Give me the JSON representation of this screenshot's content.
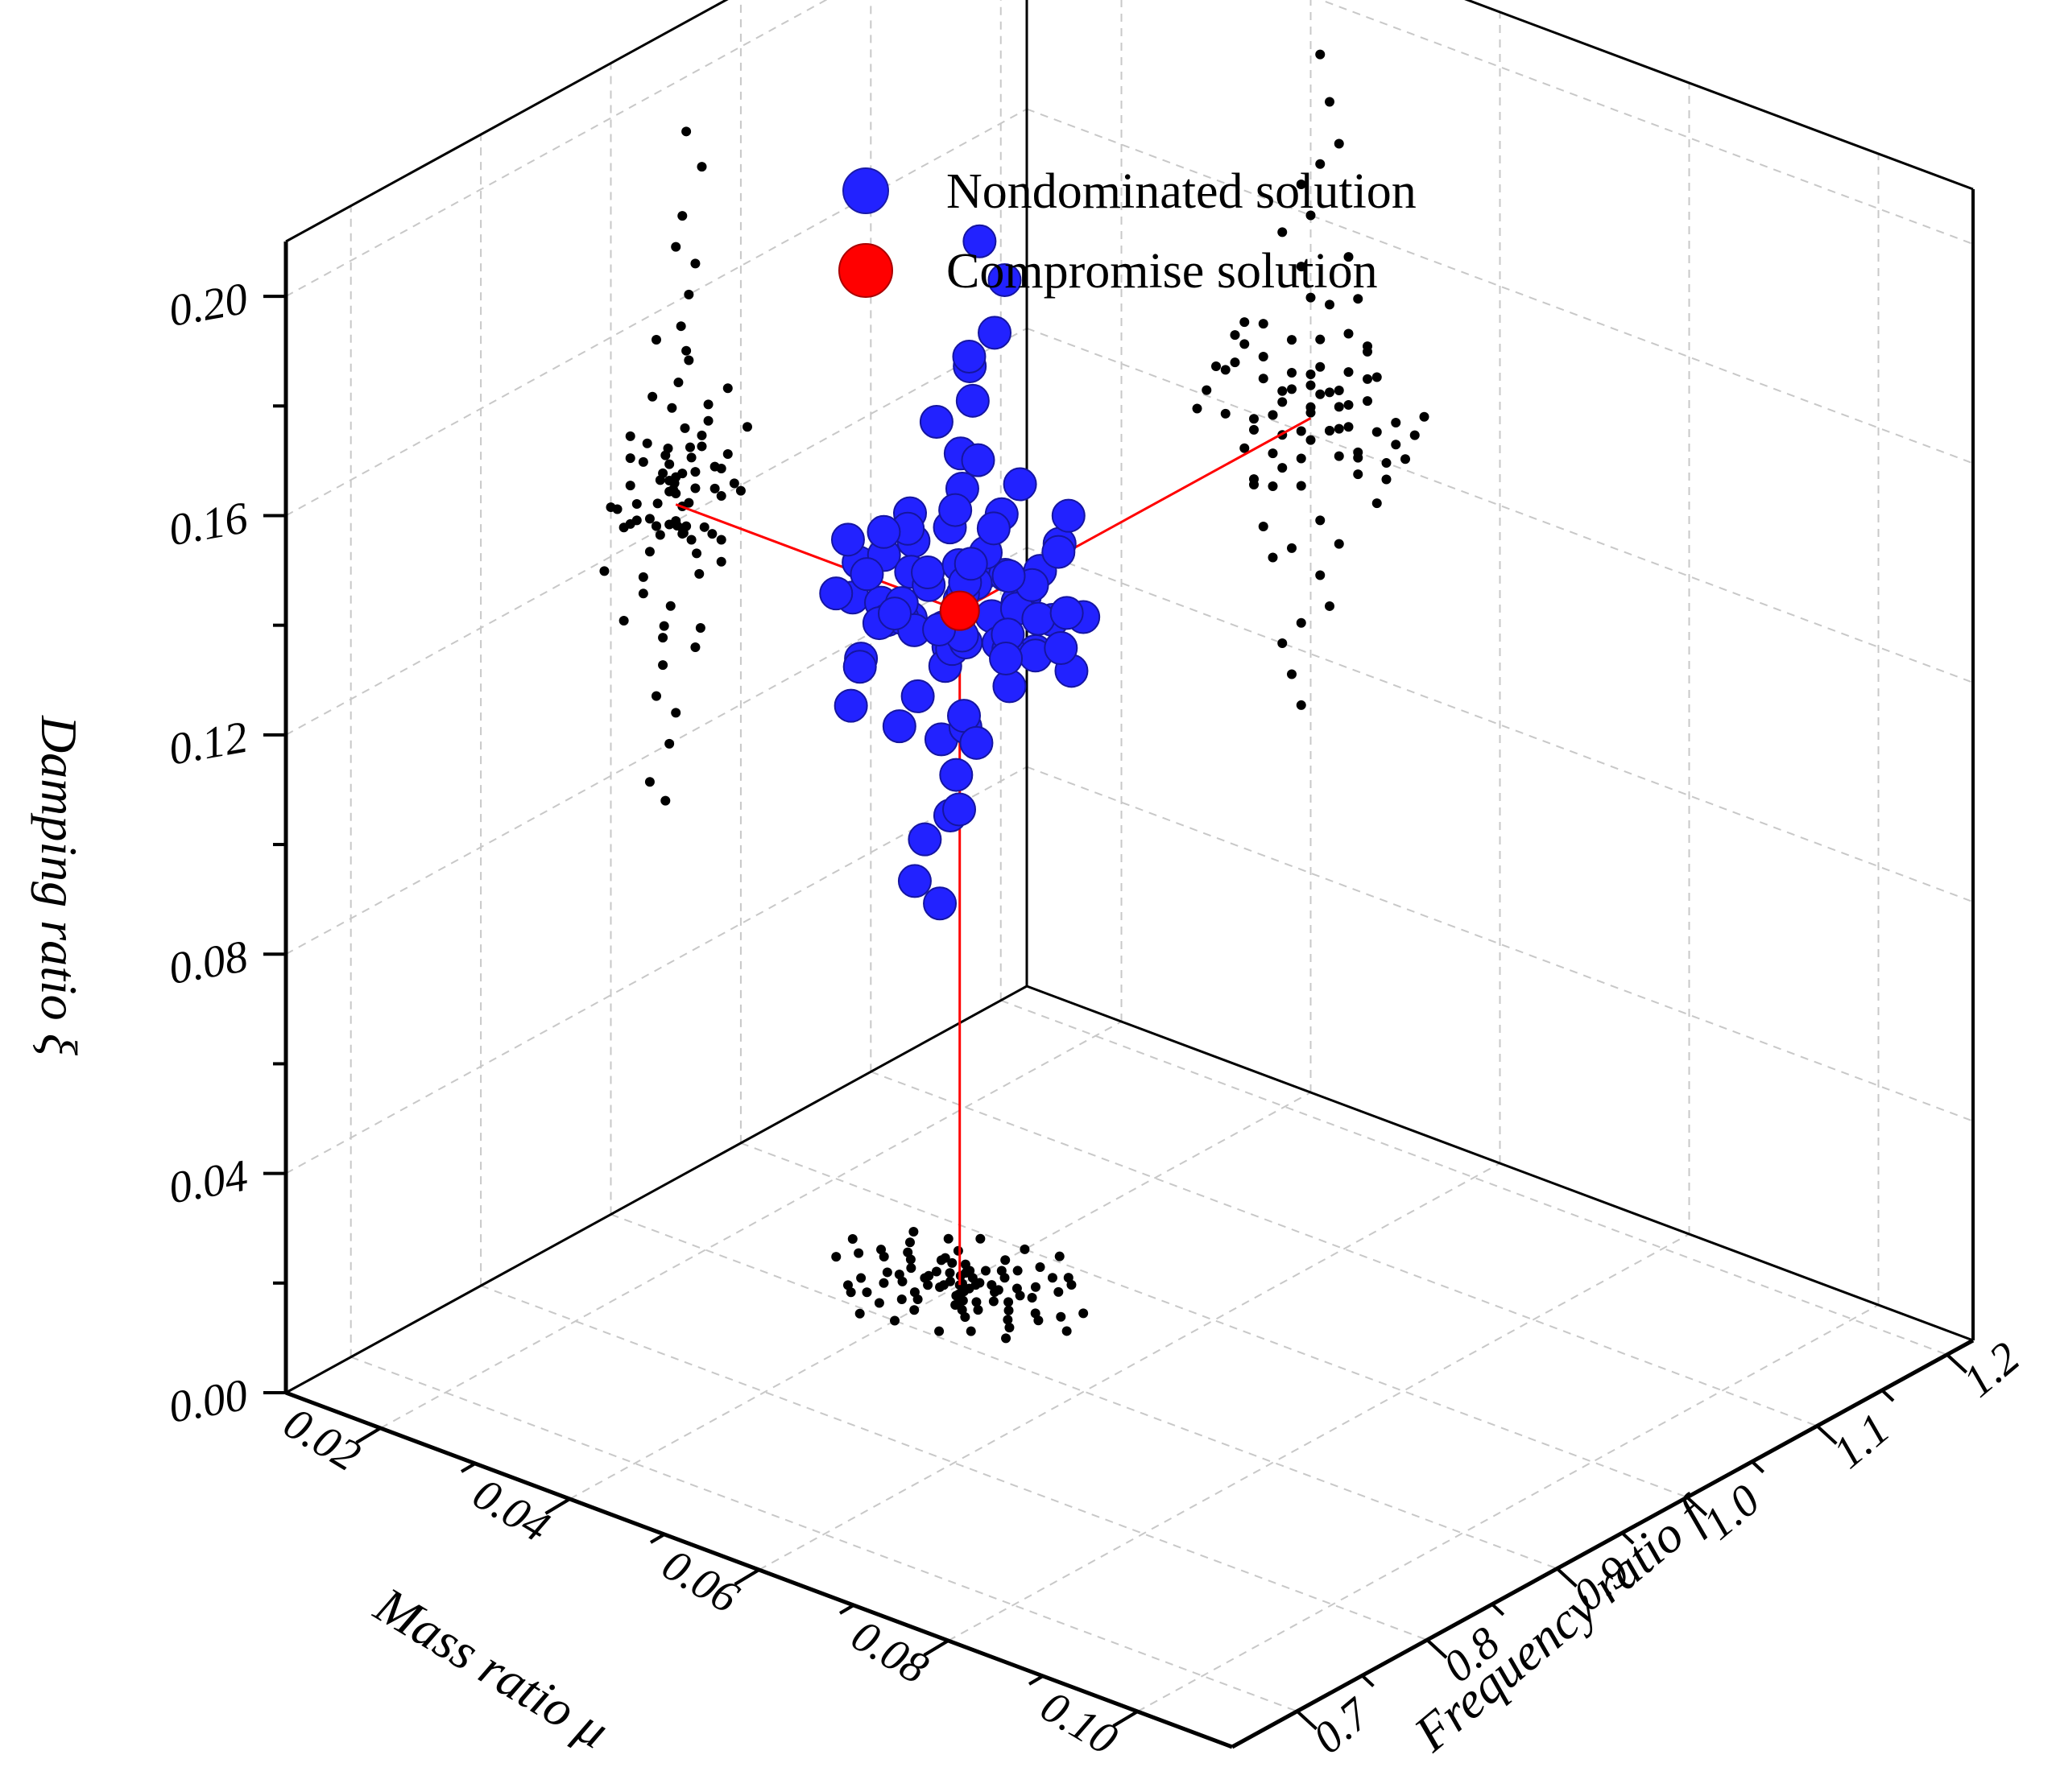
{
  "chart_data": {
    "type": "scatter",
    "subtype": "3d-scatter-with-projections",
    "axes": {
      "x": {
        "label": "Mass ratio μ",
        "ticks": [
          "0.02",
          "0.04",
          "0.06",
          "0.08",
          "0.10"
        ],
        "range": [
          0.01,
          0.11
        ]
      },
      "y": {
        "label": "Frequency ratio f",
        "ticks": [
          "0.7",
          "0.8",
          "0.9",
          "1.0",
          "1.1",
          "1.2"
        ],
        "range": [
          0.65,
          1.22
        ]
      },
      "z": {
        "label": "Damping ratio ξ",
        "ticks": [
          "0.00",
          "0.04",
          "0.08",
          "0.12",
          "0.16",
          "0.20"
        ],
        "range": [
          0.0,
          0.21
        ]
      }
    },
    "grid": true,
    "legend": {
      "position": "top-center",
      "entries": [
        {
          "label": "Nondominated solution",
          "color": "#2222ff"
        },
        {
          "label": "Compromise solution",
          "color": "#ff0000"
        }
      ]
    },
    "compromise": {
      "mu": 0.04,
      "f": 0.95,
      "xi": 0.123
    },
    "series": [
      {
        "name": "Nondominated solution",
        "color": "#2222ff",
        "points": [
          [
            0.04,
            0.95,
            0.125
          ],
          [
            0.041,
            0.955,
            0.128
          ],
          [
            0.039,
            0.945,
            0.12
          ],
          [
            0.042,
            0.96,
            0.122
          ],
          [
            0.038,
            0.94,
            0.13
          ],
          [
            0.043,
            0.958,
            0.118
          ],
          [
            0.037,
            0.948,
            0.126
          ],
          [
            0.044,
            0.965,
            0.124
          ],
          [
            0.036,
            0.935,
            0.121
          ],
          [
            0.041,
            0.942,
            0.133
          ],
          [
            0.039,
            0.962,
            0.115
          ],
          [
            0.042,
            0.938,
            0.129
          ],
          [
            0.038,
            0.957,
            0.136
          ],
          [
            0.045,
            0.951,
            0.119
          ],
          [
            0.035,
            0.949,
            0.127
          ],
          [
            0.04,
            0.97,
            0.131
          ],
          [
            0.043,
            0.93,
            0.123
          ],
          [
            0.037,
            0.966,
            0.112
          ],
          [
            0.046,
            0.944,
            0.134
          ],
          [
            0.034,
            0.956,
            0.117
          ],
          [
            0.041,
            0.975,
            0.138
          ],
          [
            0.039,
            0.925,
            0.11
          ],
          [
            0.044,
            0.947,
            0.141
          ],
          [
            0.036,
            0.968,
            0.108
          ],
          [
            0.047,
            0.936,
            0.125
          ],
          [
            0.033,
            0.961,
            0.132
          ],
          [
            0.042,
            0.98,
            0.122
          ],
          [
            0.038,
            0.92,
            0.127
          ],
          [
            0.045,
            0.972,
            0.116
          ],
          [
            0.035,
            0.928,
            0.137
          ],
          [
            0.04,
            0.952,
            0.145
          ],
          [
            0.041,
            0.946,
            0.105
          ],
          [
            0.039,
            0.958,
            0.15
          ],
          [
            0.043,
            0.941,
            0.102
          ],
          [
            0.037,
            0.954,
            0.155
          ],
          [
            0.048,
            0.95,
            0.12
          ],
          [
            0.032,
            0.95,
            0.128
          ],
          [
            0.04,
            0.985,
            0.125
          ],
          [
            0.04,
            0.915,
            0.124
          ],
          [
            0.044,
            0.925,
            0.134
          ],
          [
            0.036,
            0.978,
            0.114
          ],
          [
            0.046,
            0.962,
            0.13
          ],
          [
            0.034,
            0.938,
            0.119
          ],
          [
            0.042,
            0.932,
            0.145
          ],
          [
            0.038,
            0.969,
            0.098
          ],
          [
            0.049,
            0.945,
            0.128
          ],
          [
            0.031,
            0.955,
            0.118
          ],
          [
            0.045,
            0.985,
            0.12
          ],
          [
            0.035,
            0.915,
            0.131
          ],
          [
            0.04,
            0.96,
            0.16
          ],
          [
            0.041,
            0.94,
            0.095
          ],
          [
            0.047,
            0.975,
            0.135
          ],
          [
            0.033,
            0.925,
            0.113
          ],
          [
            0.043,
            0.99,
            0.127
          ],
          [
            0.037,
            0.91,
            0.124
          ],
          [
            0.039,
            0.965,
            0.165
          ],
          [
            0.042,
            0.935,
            0.09
          ],
          [
            0.05,
            0.955,
            0.122
          ],
          [
            0.03,
            0.945,
            0.126
          ],
          [
            0.044,
            0.905,
            0.128
          ],
          [
            0.036,
            0.995,
            0.121
          ],
          [
            0.046,
            0.915,
            0.14
          ],
          [
            0.034,
            0.985,
            0.108
          ],
          [
            0.041,
            0.95,
            0.17
          ],
          [
            0.039,
            0.95,
            0.085
          ],
          [
            0.048,
            0.93,
            0.117
          ],
          [
            0.032,
            0.97,
            0.133
          ],
          [
            0.045,
            0.96,
            0.148
          ],
          [
            0.035,
            0.94,
            0.1
          ],
          [
            0.043,
            0.955,
            0.175
          ],
          [
            0.037,
            0.945,
            0.08
          ],
          [
            0.051,
            0.965,
            0.127
          ],
          [
            0.029,
            0.935,
            0.121
          ],
          [
            0.04,
            1.0,
            0.119
          ],
          [
            0.04,
            0.9,
            0.129
          ],
          [
            0.047,
            0.985,
            0.112
          ],
          [
            0.033,
            0.915,
            0.136
          ],
          [
            0.044,
            0.935,
            0.155
          ],
          [
            0.036,
            0.965,
            0.095
          ],
          [
            0.042,
            0.97,
            0.182
          ],
          [
            0.038,
            0.93,
            0.075
          ],
          [
            0.052,
            0.945,
            0.131
          ],
          [
            0.028,
            0.955,
            0.117
          ],
          [
            0.046,
            0.99,
            0.139
          ],
          [
            0.034,
            0.91,
            0.107
          ],
          [
            0.041,
            0.958,
            0.19
          ],
          [
            0.039,
            0.942,
            0.07
          ],
          [
            0.049,
            0.92,
            0.124
          ],
          [
            0.031,
            0.98,
            0.126
          ],
          [
            0.043,
            1.005,
            0.13
          ],
          [
            0.037,
            0.895,
            0.118
          ]
        ]
      },
      {
        "name": "Compromise solution",
        "color": "#ff0000",
        "points": [
          [
            0.04,
            0.95,
            0.123
          ]
        ]
      }
    ]
  },
  "legend_labels": {
    "nondominated": "Nondominated solution",
    "compromise": "Compromise solution"
  },
  "axis_titles": {
    "z": "Damping ratio ξ",
    "x": "Mass ratio μ",
    "y": "Frequency ratio f"
  }
}
